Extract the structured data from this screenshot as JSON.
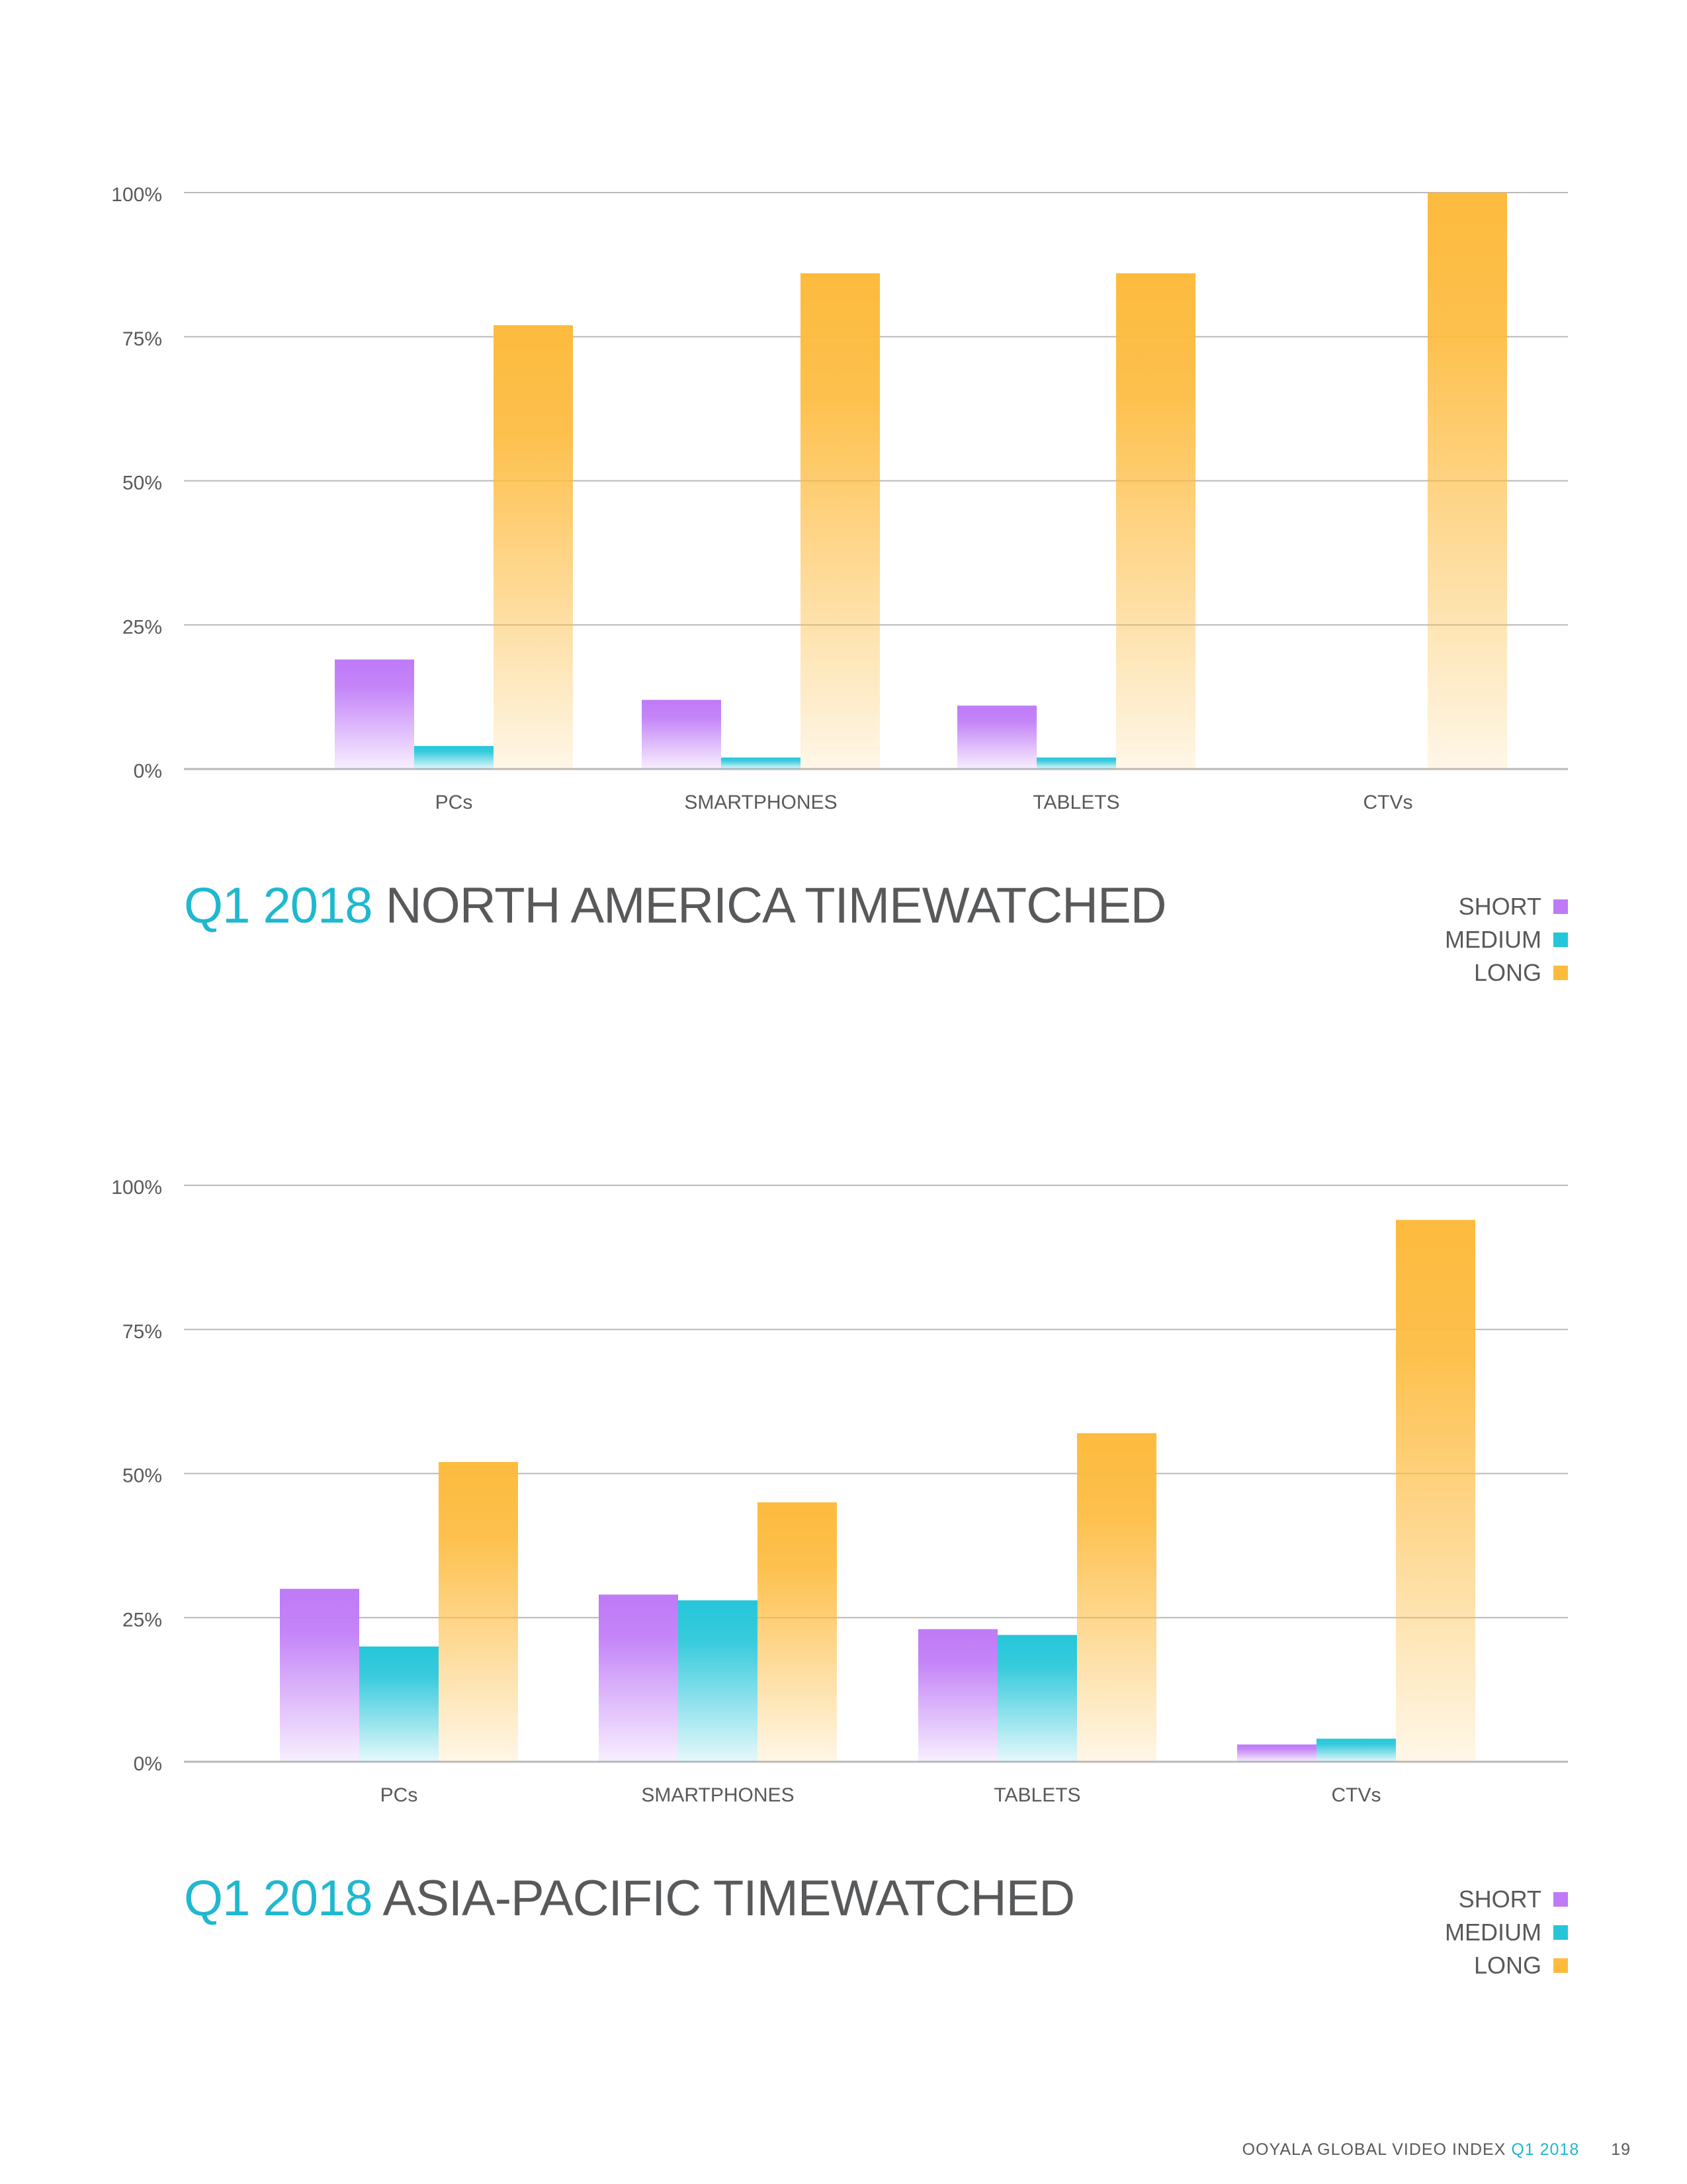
{
  "colors": {
    "short": "#bf7af7",
    "medium": "#26c6da",
    "long": "#fdbb3e",
    "accent": "#1fb8d0",
    "text": "#58595b",
    "grid": "#b9b9b9"
  },
  "chart_data": [
    {
      "type": "bar",
      "title_accent": "Q1 2018",
      "title_rest": "NORTH AMERICA TIMEWATCHED",
      "categories": [
        "PCs",
        "SMARTPHONES",
        "TABLETS",
        "CTVs"
      ],
      "series": [
        {
          "name": "SHORT",
          "values": [
            19,
            12,
            11,
            0
          ]
        },
        {
          "name": "MEDIUM",
          "values": [
            4,
            2,
            2,
            0
          ]
        },
        {
          "name": "LONG",
          "values": [
            77,
            86,
            86,
            100
          ]
        }
      ],
      "yticks": [
        "0%",
        "25%",
        "50%",
        "75%",
        "100%"
      ],
      "ylim": [
        0,
        100
      ],
      "legend": [
        "SHORT",
        "MEDIUM",
        "LONG"
      ]
    },
    {
      "type": "bar",
      "title_accent": "Q1 2018",
      "title_rest": "ASIA-PACIFIC TIMEWATCHED",
      "categories": [
        "PCs",
        "SMARTPHONES",
        "TABLETS",
        "CTVs"
      ],
      "series": [
        {
          "name": "SHORT",
          "values": [
            30,
            29,
            23,
            3
          ]
        },
        {
          "name": "MEDIUM",
          "values": [
            20,
            28,
            22,
            4
          ]
        },
        {
          "name": "LONG",
          "values": [
            52,
            45,
            57,
            94
          ]
        }
      ],
      "yticks": [
        "0%",
        "25%",
        "50%",
        "75%",
        "100%"
      ],
      "ylim": [
        0,
        100
      ],
      "legend": [
        "SHORT",
        "MEDIUM",
        "LONG"
      ]
    }
  ],
  "footer": {
    "publication": "OOYALA GLOBAL VIDEO INDEX",
    "edition": "Q1 2018",
    "page_number": "19"
  }
}
